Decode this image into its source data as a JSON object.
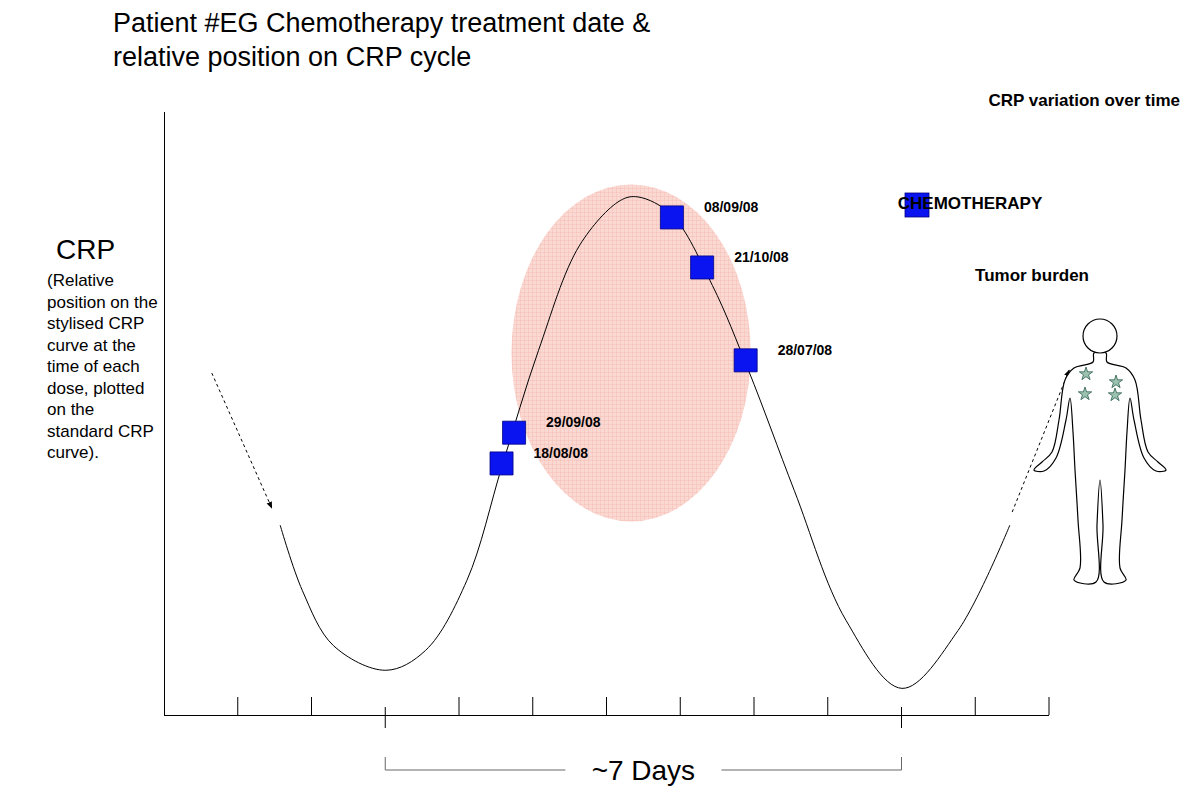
{
  "chart_data": {
    "type": "line",
    "title": [
      "Patient #EG Chemotherapy treatment date &",
      "relative position on CRP cycle"
    ],
    "y_label": "CRP",
    "y_label_note": "(Relative position on the stylised CRP curve at the time of each dose, plotted on the standard CRP curve).",
    "figure_label": "Tumor burden",
    "xlim": [
      -3,
      9
    ],
    "xticks": [
      -2,
      -1,
      0,
      1,
      2,
      3,
      4,
      5,
      6,
      7,
      8,
      9
    ],
    "ylim": [
      0,
      100
    ],
    "yticks": [],
    "tick_labels": false,
    "legend": "top-right",
    "period": {
      "start": 0,
      "end": 7,
      "label": "~7 Days"
    },
    "series": [
      {
        "name": "CRP variation over time",
        "type": "line",
        "color": "#000000",
        "x": [
          -1.43,
          -1.13,
          -0.71,
          0,
          0.54,
          1.1,
          1.58,
          2.07,
          2.63,
          3.18,
          3.42,
          3.88,
          4.43,
          4.92,
          5.54,
          6.24,
          7,
          7.76,
          8.46
        ],
        "values": [
          31.5,
          20.7,
          11.6,
          7.5,
          10.8,
          22.4,
          41.5,
          60.5,
          78,
          85.4,
          86,
          83,
          71.3,
          57.2,
          37.3,
          15.8,
          4.5,
          14.1,
          31.5
        ]
      },
      {
        "name": "CHEMOTHERAPY",
        "type": "scatter",
        "marker": "square",
        "color": "#0a14f0",
        "x": [
          3.88,
          4.29,
          4.88,
          1.74,
          1.57
        ],
        "values": [
          82.6,
          74.3,
          58.9,
          46.9,
          41.8
        ],
        "labels": [
          "08/09/08",
          "21/10/08",
          "28/07/08",
          "29/09/08",
          "18/08/08"
        ]
      }
    ]
  }
}
